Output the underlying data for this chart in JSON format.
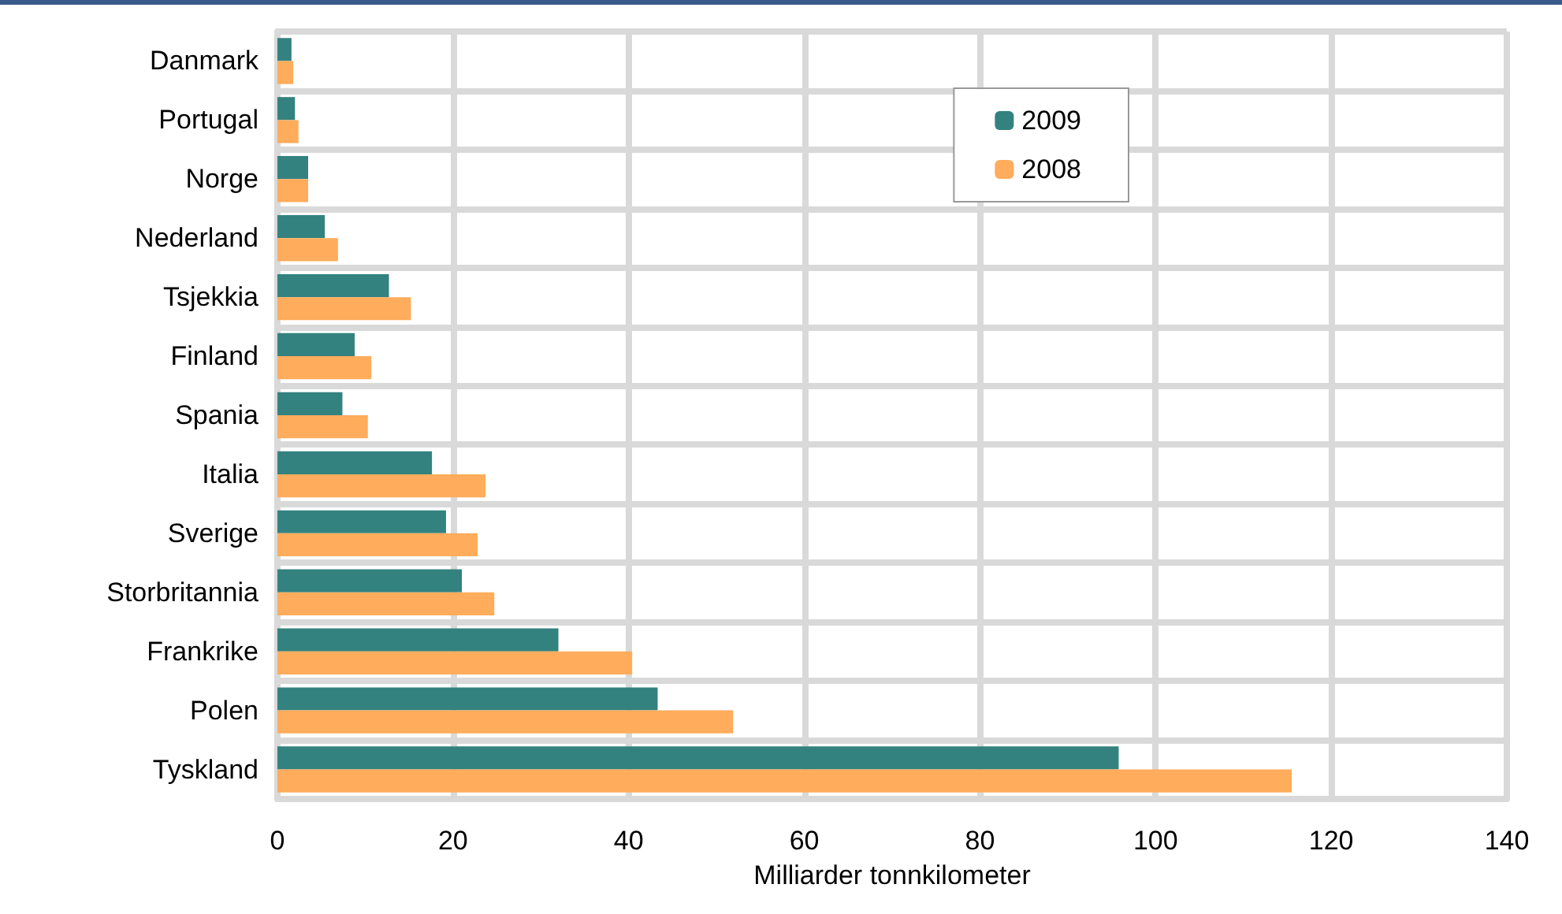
{
  "chart_data": {
    "type": "bar",
    "orientation": "horizontal",
    "xlabel": "Milliarder tonnkilometer",
    "categories": [
      "Danmark",
      "Portugal",
      "Norge",
      "Nederland",
      "Tsjekkia",
      "Finland",
      "Spania",
      "Italia",
      "Sverige",
      "Storbritannia",
      "Frankrike",
      "Polen",
      "Tyskland"
    ],
    "series": [
      {
        "name": "2009",
        "color": "#33827f",
        "values": [
          1.6,
          2.0,
          3.5,
          5.4,
          12.7,
          8.8,
          7.4,
          17.6,
          19.2,
          21.0,
          32.0,
          43.3,
          95.8
        ]
      },
      {
        "name": "2008",
        "color": "#ffac5c",
        "values": [
          1.8,
          2.4,
          3.5,
          6.9,
          15.2,
          10.7,
          10.3,
          23.7,
          22.8,
          24.7,
          40.4,
          51.9,
          115.5
        ]
      }
    ],
    "xlim": [
      0,
      140
    ],
    "xticks": [
      0,
      20,
      40,
      60,
      80,
      100,
      120,
      140
    ],
    "grid": true,
    "legend": "top right"
  }
}
